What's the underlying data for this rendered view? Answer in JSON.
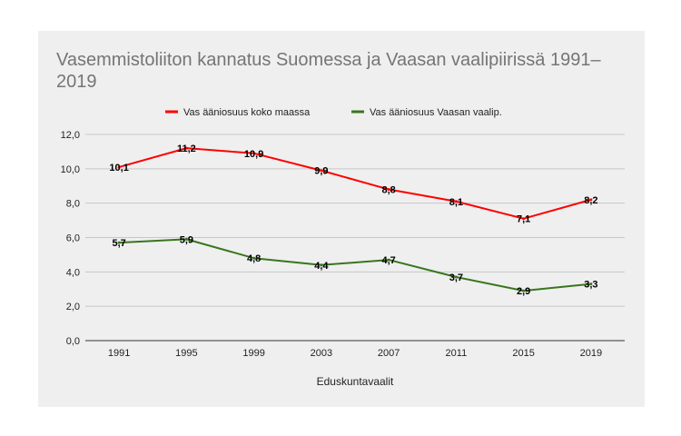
{
  "chart_data": {
    "type": "line",
    "title": "Vasemmistoliiton kannatus Suomessa ja Vaasan vaalipiirissä 1991–2019",
    "xlabel": "Eduskuntavaalit",
    "ylabel": "",
    "categories": [
      "1991",
      "1995",
      "1999",
      "2003",
      "2007",
      "2011",
      "2015",
      "2019"
    ],
    "ylim": [
      0,
      12
    ],
    "yticks": [
      0,
      2,
      4,
      6,
      8,
      10,
      12
    ],
    "ytick_labels": [
      "0,0",
      "2,0",
      "4,0",
      "6,0",
      "8,0",
      "10,0",
      "12,0"
    ],
    "grid": true,
    "legend": "top",
    "series": [
      {
        "name": "Vas ääniosuus koko maassa",
        "color": "#ff0000",
        "values": [
          10.1,
          11.2,
          10.9,
          9.9,
          8.8,
          8.1,
          7.1,
          8.2
        ],
        "labels": [
          "10,1",
          "11,2",
          "10,9",
          "9,9",
          "8,8",
          "8,1",
          "7,1",
          "8,2"
        ]
      },
      {
        "name": "Vas ääniosuus Vaasan vaalip.",
        "color": "#38761d",
        "values": [
          5.7,
          5.9,
          4.8,
          4.4,
          4.7,
          3.7,
          2.9,
          3.3
        ],
        "labels": [
          "5,7",
          "5,9",
          "4,8",
          "4,4",
          "4,7",
          "3,7",
          "2,9",
          "3,3"
        ]
      }
    ]
  }
}
